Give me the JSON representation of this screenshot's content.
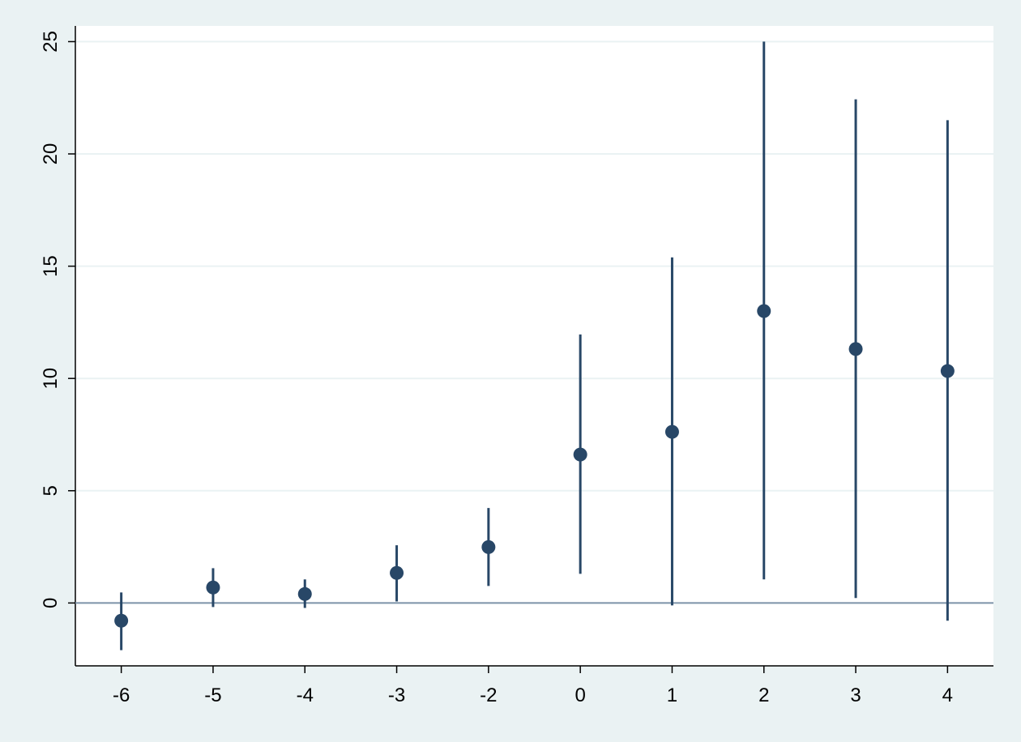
{
  "chart_data": {
    "type": "errorbar",
    "categories": [
      "-6",
      "-5",
      "-4",
      "-3",
      "-2",
      "0",
      "1",
      "2",
      "3",
      "4"
    ],
    "series": [
      {
        "color": "#284767",
        "values": [
          -0.79,
          0.69,
          0.4,
          1.34,
          2.49,
          6.61,
          7.62,
          13.0,
          11.31,
          10.33
        ],
        "low": [
          -2.1,
          -0.18,
          -0.22,
          0.07,
          0.76,
          1.3,
          -0.11,
          1.05,
          0.22,
          -0.79
        ],
        "high": [
          0.47,
          1.55,
          1.05,
          2.57,
          4.23,
          11.96,
          15.39,
          25.0,
          22.43,
          21.5
        ]
      }
    ],
    "reference_line": 0,
    "ylim": [
      -2.8,
      25.7
    ],
    "yticks": [
      0,
      5,
      10,
      15,
      20,
      25
    ],
    "grid": true
  }
}
